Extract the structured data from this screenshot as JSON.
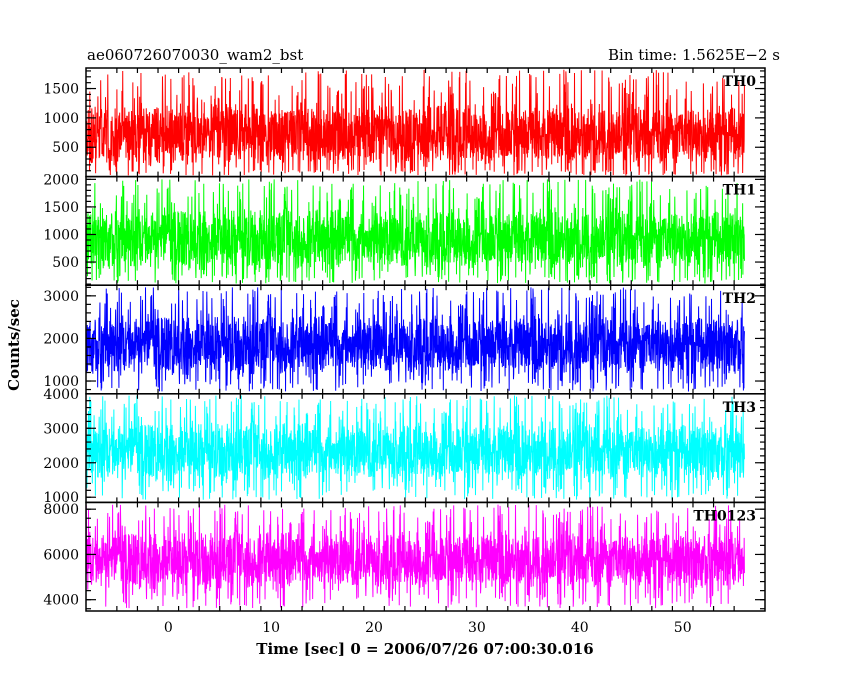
{
  "chart_data": {
    "type": "line",
    "title_left": "ae060726070030_wam2_bst",
    "title_right": "Bin time: 1.5625E−2 s",
    "xlabel": "Time [sec] 0 = 2006/07/26 07:00:30.016",
    "ylabel": "Counts/sec",
    "xlim": [
      -8,
      58
    ],
    "x_ticks": [
      0,
      10,
      20,
      30,
      40,
      50
    ],
    "x_data_range": [
      -8,
      56
    ],
    "panels": [
      {
        "name": "TH0",
        "color": "#ff0000",
        "ylim": [
          0,
          1850
        ],
        "ticks": [
          500,
          1000,
          1500
        ],
        "band": [
          120,
          1300
        ],
        "spike_max": 1820
      },
      {
        "name": "TH1",
        "color": "#00ff00",
        "ylim": [
          80,
          2050
        ],
        "ticks": [
          500,
          1000,
          1500,
          2000
        ],
        "band": [
          280,
          1550
        ],
        "spike_max": 2000
      },
      {
        "name": "TH2",
        "color": "#0000ff",
        "ylim": [
          700,
          3250
        ],
        "ticks": [
          1000,
          2000,
          3000
        ],
        "band": [
          1050,
          2650
        ],
        "spike_max": 3200
      },
      {
        "name": "TH3",
        "color": "#00ffff",
        "ylim": [
          850,
          4000
        ],
        "ticks": [
          1000,
          2000,
          3000,
          4000
        ],
        "band": [
          1350,
          3300
        ],
        "spike_max": 3950
      },
      {
        "name": "TH0123",
        "color": "#ff00ff",
        "ylim": [
          3500,
          8300
        ],
        "ticks": [
          4000,
          6000,
          8000
        ],
        "band": [
          4300,
          7200
        ],
        "spike_max": 8200
      }
    ]
  }
}
